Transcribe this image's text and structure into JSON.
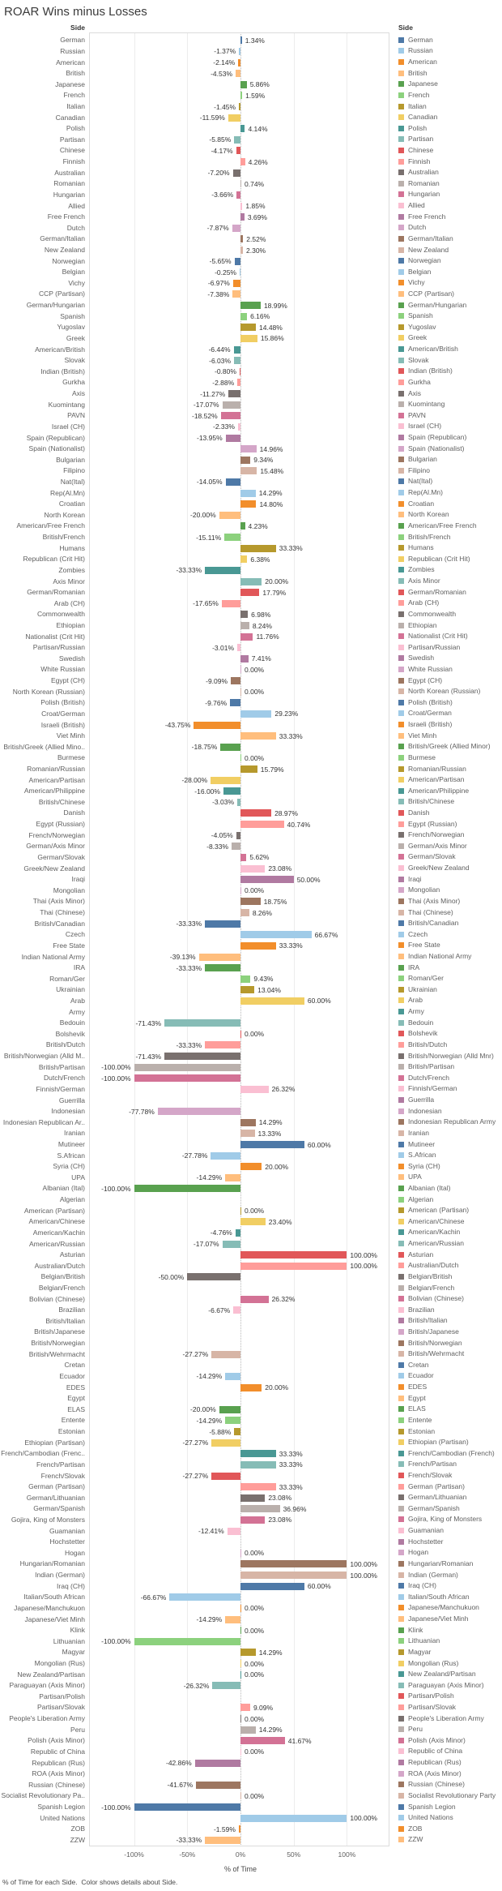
{
  "title": "ROAR Wins minus Losses",
  "column_header": "Side",
  "legend_title": "Side",
  "caption": "% of Time for each Side.  Color shows details about Side.",
  "palette": [
    "#4E79A7",
    "#A0CBE8",
    "#F28E2B",
    "#FFBE7D",
    "#59A14F",
    "#8CD17D",
    "#B6992D",
    "#F1CE63",
    "#499894",
    "#86BCB6",
    "#E15759",
    "#FF9D9A",
    "#79706E",
    "#BAB0AC",
    "#D37295",
    "#FABFD2",
    "#B07AA1",
    "#D4A6C8",
    "#9D7660",
    "#D7B5A6"
  ],
  "chart_data": {
    "type": "bar",
    "orientation": "horizontal",
    "title": "ROAR Wins minus Losses",
    "xlabel": "% of Time",
    "ylabel": "Side",
    "xlim": [
      -142,
      142
    ],
    "grid": true,
    "legend_position": "right",
    "axis": {
      "ticks": [
        "-100%",
        "-50%",
        "0%",
        "50%",
        "100%"
      ],
      "tick_values": [
        -100,
        -50,
        0,
        50,
        100
      ]
    },
    "rows": [
      {
        "side": "German",
        "value": 1.34,
        "label": "1.34%"
      },
      {
        "side": "Russian",
        "value": -1.37,
        "label": "-1.37%"
      },
      {
        "side": "American",
        "value": -2.14,
        "label": "-2.14%"
      },
      {
        "side": "British",
        "value": -4.53,
        "label": "-4.53%"
      },
      {
        "side": "Japanese",
        "value": 5.86,
        "label": "5.86%"
      },
      {
        "side": "French",
        "value": 1.59,
        "label": "1.59%"
      },
      {
        "side": "Italian",
        "value": -1.45,
        "label": "-1.45%"
      },
      {
        "side": "Canadian",
        "value": -11.59,
        "label": "-11.59%"
      },
      {
        "side": "Polish",
        "value": 4.14,
        "label": "4.14%"
      },
      {
        "side": "Partisan",
        "value": -5.85,
        "label": "-5.85%"
      },
      {
        "side": "Chinese",
        "value": -4.17,
        "label": "-4.17%"
      },
      {
        "side": "Finnish",
        "value": 4.26,
        "label": "4.26%"
      },
      {
        "side": "Australian",
        "value": -7.2,
        "label": "-7.20%"
      },
      {
        "side": "Romanian",
        "value": 0.74,
        "label": "0.74%"
      },
      {
        "side": "Hungarian",
        "value": -3.66,
        "label": "-3.66%"
      },
      {
        "side": "Allied",
        "value": 1.85,
        "label": "1.85%"
      },
      {
        "side": "Free French",
        "value": 3.69,
        "label": "3.69%"
      },
      {
        "side": "Dutch",
        "value": -7.87,
        "label": "-7.87%"
      },
      {
        "side": "German/Italian",
        "value": 2.52,
        "label": "2.52%"
      },
      {
        "side": "New Zealand",
        "value": 2.3,
        "label": "2.30%"
      },
      {
        "side": "Norwegian",
        "value": -5.65,
        "label": "-5.65%"
      },
      {
        "side": "Belgian",
        "value": -0.25,
        "label": "-0.25%"
      },
      {
        "side": "Vichy",
        "value": -6.97,
        "label": "-6.97%"
      },
      {
        "side": "CCP (Partisan)",
        "value": -7.38,
        "label": "-7.38%"
      },
      {
        "side": "German/Hungarian",
        "value": 18.99,
        "label": "18.99%"
      },
      {
        "side": "Spanish",
        "value": 6.16,
        "label": "6.16%"
      },
      {
        "side": "Yugoslav",
        "value": 14.48,
        "label": "14.48%"
      },
      {
        "side": "Greek",
        "value": 15.86,
        "label": "15.86%"
      },
      {
        "side": "American/British",
        "value": -6.44,
        "label": "-6.44%"
      },
      {
        "side": "Slovak",
        "value": -6.03,
        "label": "-6.03%"
      },
      {
        "side": "Indian (British)",
        "value": -0.8,
        "label": "-0.80%"
      },
      {
        "side": "Gurkha",
        "value": -2.88,
        "label": "-2.88%"
      },
      {
        "side": "Axis",
        "value": -11.27,
        "label": "-11.27%"
      },
      {
        "side": "Kuomintang",
        "value": -17.07,
        "label": "-17.07%"
      },
      {
        "side": "PAVN",
        "value": -18.52,
        "label": "-18.52%"
      },
      {
        "side": "Israel (CH)",
        "value": -2.33,
        "label": "-2.33%"
      },
      {
        "side": "Spain (Republican)",
        "value": -13.95,
        "label": "-13.95%"
      },
      {
        "side": "Spain (Nationalist)",
        "value": 14.96,
        "label": "14.96%"
      },
      {
        "side": "Bulgarian",
        "value": 9.34,
        "label": "9.34%"
      },
      {
        "side": "Filipino",
        "value": 15.48,
        "label": "15.48%"
      },
      {
        "side": "Nat(Ital)",
        "value": -14.05,
        "label": "-14.05%"
      },
      {
        "side": "Rep(Al.Mn)",
        "value": 14.29,
        "label": "14.29%"
      },
      {
        "side": "Croatian",
        "value": 14.8,
        "label": "14.80%"
      },
      {
        "side": "North Korean",
        "value": -20.0,
        "label": "-20.00%"
      },
      {
        "side": "American/Free French",
        "value": 4.23,
        "label": "4.23%"
      },
      {
        "side": "British/French",
        "value": -15.11,
        "label": "-15.11%"
      },
      {
        "side": "Humans",
        "value": 33.33,
        "label": "33.33%"
      },
      {
        "side": "Republican (Crit Hit)",
        "value": 6.38,
        "label": "6.38%"
      },
      {
        "side": "Zombies",
        "value": -33.33,
        "label": "-33.33%"
      },
      {
        "side": "Axis Minor",
        "value": 20.0,
        "label": "20.00%"
      },
      {
        "side": "German/Romanian",
        "value": 17.79,
        "label": "17.79%"
      },
      {
        "side": "Arab (CH)",
        "value": -17.65,
        "label": "-17.65%"
      },
      {
        "side": "Commonwealth",
        "value": 6.98,
        "label": "6.98%"
      },
      {
        "side": "Ethiopian",
        "value": 8.24,
        "label": "8.24%"
      },
      {
        "side": "Nationalist (Crit Hit)",
        "value": 11.76,
        "label": "11.76%"
      },
      {
        "side": "Partisan/Russian",
        "value": -3.01,
        "label": "-3.01%"
      },
      {
        "side": "Swedish",
        "value": 7.41,
        "label": "7.41%"
      },
      {
        "side": "White Russian",
        "value": 0.0,
        "label": "0.00%"
      },
      {
        "side": "Egypt (CH)",
        "value": -9.09,
        "label": "-9.09%"
      },
      {
        "side": "North Korean (Russian)",
        "value": 0.0,
        "label": "0.00%"
      },
      {
        "side": "Polish (British)",
        "value": -9.76,
        "label": "-9.76%"
      },
      {
        "side": "Croat/German",
        "value": 29.23,
        "label": "29.23%"
      },
      {
        "side": "Israeli (British)",
        "value": -43.75,
        "label": "-43.75%"
      },
      {
        "side": "Viet Minh",
        "value": 33.33,
        "label": "33.33%"
      },
      {
        "side": "British/Greek (Allied Minor)",
        "display": "British/Greek (Allied Mino..",
        "value": -18.75,
        "label": "-18.75%"
      },
      {
        "side": "Burmese",
        "value": 0.0,
        "label": "0.00%"
      },
      {
        "side": "Romanian/Russian",
        "value": 15.79,
        "label": "15.79%"
      },
      {
        "side": "American/Partisan",
        "value": -28.0,
        "label": "-28.00%"
      },
      {
        "side": "American/Philippine",
        "value": -16.0,
        "label": "-16.00%"
      },
      {
        "side": "British/Chinese",
        "value": -3.03,
        "label": "-3.03%"
      },
      {
        "side": "Danish",
        "value": 28.97,
        "label": "28.97%"
      },
      {
        "side": "Egypt (Russian)",
        "value": 40.74,
        "label": "40.74%"
      },
      {
        "side": "French/Norwegian",
        "value": -4.05,
        "label": "-4.05%"
      },
      {
        "side": "German/Axis Minor",
        "value": -8.33,
        "label": "-8.33%"
      },
      {
        "side": "German/Slovak",
        "value": 5.62,
        "label": "5.62%"
      },
      {
        "side": "Greek/New Zealand",
        "value": 23.08,
        "label": "23.08%"
      },
      {
        "side": "Iraqi",
        "value": 50.0,
        "label": "50.00%"
      },
      {
        "side": "Mongolian",
        "value": 0.0,
        "label": "0.00%"
      },
      {
        "side": "Thai (Axis Minor)",
        "value": 18.75,
        "label": "18.75%"
      },
      {
        "side": "Thai (Chinese)",
        "value": 8.26,
        "label": "8.26%"
      },
      {
        "side": "British/Canadian",
        "value": -33.33,
        "label": "-33.33%"
      },
      {
        "side": "Czech",
        "value": 66.67,
        "label": "66.67%"
      },
      {
        "side": "Free State",
        "value": 33.33,
        "label": "33.33%"
      },
      {
        "side": "Indian National Army",
        "value": -39.13,
        "label": "-39.13%"
      },
      {
        "side": "IRA",
        "value": -33.33,
        "label": "-33.33%"
      },
      {
        "side": "Roman/Ger",
        "value": 9.43,
        "label": "9.43%"
      },
      {
        "side": "Ukrainian",
        "value": 13.04,
        "label": "13.04%"
      },
      {
        "side": "Arab",
        "value": 60.0,
        "label": "60.00%"
      },
      {
        "side": "Army",
        "value": null,
        "label": ""
      },
      {
        "side": "Bedouin",
        "value": -71.43,
        "label": "-71.43%"
      },
      {
        "side": "Bolshevik",
        "value": 0.0,
        "label": "0.00%"
      },
      {
        "side": "British/Dutch",
        "value": -33.33,
        "label": "-33.33%"
      },
      {
        "side": "British/Norwegian (Alld Mnr)",
        "display": "British/Norwegian (Alld M..",
        "value": -71.43,
        "label": "-71.43%"
      },
      {
        "side": "British/Partisan",
        "value": -100.0,
        "label": "-100.00%"
      },
      {
        "side": "Dutch/French",
        "value": -100.0,
        "label": "-100.00%"
      },
      {
        "side": "Finnish/German",
        "value": 26.32,
        "label": "26.32%"
      },
      {
        "side": "Guerrilla",
        "value": null,
        "label": ""
      },
      {
        "side": "Indonesian",
        "value": -77.78,
        "label": "-77.78%"
      },
      {
        "side": "Indonesian Republican Army",
        "display": "Indonesian Republican Ar..",
        "value": 14.29,
        "label": "14.29%"
      },
      {
        "side": "Iranian",
        "value": 13.33,
        "label": "13.33%"
      },
      {
        "side": "Mutineer",
        "value": 60.0,
        "label": "60.00%"
      },
      {
        "side": "S.African",
        "value": -27.78,
        "label": "-27.78%"
      },
      {
        "side": "Syria (CH)",
        "value": 20.0,
        "label": "20.00%"
      },
      {
        "side": "UPA",
        "value": -14.29,
        "label": "-14.29%"
      },
      {
        "side": "Albanian (Ital)",
        "value": -100.0,
        "label": "-100.00%"
      },
      {
        "side": "Algerian",
        "value": null,
        "label": ""
      },
      {
        "side": "American (Partisan)",
        "value": 0.0,
        "label": "0.00%"
      },
      {
        "side": "American/Chinese",
        "value": 23.4,
        "label": "23.40%"
      },
      {
        "side": "American/Kachin",
        "value": -4.76,
        "label": "-4.76%"
      },
      {
        "side": "American/Russian",
        "value": -17.07,
        "label": "-17.07%"
      },
      {
        "side": "Asturian",
        "value": 100.0,
        "label": "100.00%"
      },
      {
        "side": "Australian/Dutch",
        "value": 100.0,
        "label": "100.00%"
      },
      {
        "side": "Belgian/British",
        "value": -50.0,
        "label": "-50.00%"
      },
      {
        "side": "Belgian/French",
        "value": null,
        "label": ""
      },
      {
        "side": "Bolivian (Chinese)",
        "value": 26.32,
        "label": "26.32%"
      },
      {
        "side": "Brazilian",
        "value": -6.67,
        "label": "-6.67%"
      },
      {
        "side": "British/Italian",
        "value": null,
        "label": ""
      },
      {
        "side": "British/Japanese",
        "value": null,
        "label": ""
      },
      {
        "side": "British/Norwegian",
        "value": null,
        "label": ""
      },
      {
        "side": "British/Wehrmacht",
        "value": -27.27,
        "label": "-27.27%"
      },
      {
        "side": "Cretan",
        "value": null,
        "label": ""
      },
      {
        "side": "Ecuador",
        "value": -14.29,
        "label": "-14.29%"
      },
      {
        "side": "EDES",
        "value": 20.0,
        "label": "20.00%"
      },
      {
        "side": "Egypt",
        "value": null,
        "label": ""
      },
      {
        "side": "ELAS",
        "value": -20.0,
        "label": "-20.00%"
      },
      {
        "side": "Entente",
        "value": -14.29,
        "label": "-14.29%"
      },
      {
        "side": "Estonian",
        "value": -5.88,
        "label": "-5.88%"
      },
      {
        "side": "Ethiopian (Partisan)",
        "value": -27.27,
        "label": "-27.27%"
      },
      {
        "side": "French/Cambodian (French)",
        "display": "French/Cambodian (Frenc..",
        "value": 33.33,
        "label": "33.33%"
      },
      {
        "side": "French/Partisan",
        "value": 33.33,
        "label": "33.33%"
      },
      {
        "side": "French/Slovak",
        "value": -27.27,
        "label": "-27.27%"
      },
      {
        "side": "German (Partisan)",
        "value": 33.33,
        "label": "33.33%"
      },
      {
        "side": "German/Lithuanian",
        "value": 23.08,
        "label": "23.08%"
      },
      {
        "side": "German/Spanish",
        "value": 36.96,
        "label": "36.96%"
      },
      {
        "side": "Gojira, King of Monsters",
        "value": 23.08,
        "label": "23.08%"
      },
      {
        "side": "Guamanian",
        "value": -12.41,
        "label": "-12.41%"
      },
      {
        "side": "Hochstetter",
        "value": null,
        "label": ""
      },
      {
        "side": "Hogan",
        "value": 0.0,
        "label": "0.00%"
      },
      {
        "side": "Hungarian/Romanian",
        "value": 100.0,
        "label": "100.00%"
      },
      {
        "side": "Indian (German)",
        "value": 100.0,
        "label": "100.00%"
      },
      {
        "side": "Iraq (CH)",
        "value": 60.0,
        "label": "60.00%"
      },
      {
        "side": "Italian/South African",
        "value": -66.67,
        "label": "-66.67%"
      },
      {
        "side": "Japanese/Manchukuon",
        "value": 0.0,
        "label": "0.00%"
      },
      {
        "side": "Japanese/Viet Minh",
        "value": -14.29,
        "label": "-14.29%"
      },
      {
        "side": "Klink",
        "value": 0.0,
        "label": "0.00%"
      },
      {
        "side": "Lithuanian",
        "value": -100.0,
        "label": "-100.00%"
      },
      {
        "side": "Magyar",
        "value": 14.29,
        "label": "14.29%"
      },
      {
        "side": "Mongolian (Rus)",
        "value": 0.0,
        "label": "0.00%"
      },
      {
        "side": "New Zealand/Partisan",
        "value": 0.0,
        "label": "0.00%"
      },
      {
        "side": "Paraguayan (Axis Minor)",
        "value": -26.32,
        "label": "-26.32%"
      },
      {
        "side": "Partisan/Polish",
        "value": null,
        "label": ""
      },
      {
        "side": "Partisan/Slovak",
        "value": 9.09,
        "label": "9.09%"
      },
      {
        "side": "People's Liberation Army",
        "value": 0.0,
        "label": "0.00%"
      },
      {
        "side": "Peru",
        "value": 14.29,
        "label": "14.29%"
      },
      {
        "side": "Polish (Axis Minor)",
        "value": 41.67,
        "label": "41.67%"
      },
      {
        "side": "Republic of China",
        "value": 0.0,
        "label": "0.00%"
      },
      {
        "side": "Republican (Rus)",
        "value": -42.86,
        "label": "-42.86%"
      },
      {
        "side": "ROA (Axis Minor)",
        "value": null,
        "label": ""
      },
      {
        "side": "Russian (Chinese)",
        "value": -41.67,
        "label": "-41.67%"
      },
      {
        "side": "Socialist Revolutionary Party",
        "display": "Socialist Revolutionary Pa..",
        "value": 0.0,
        "label": "0.00%"
      },
      {
        "side": "Spanish Legion",
        "value": -100.0,
        "label": "-100.00%"
      },
      {
        "side": "United Nations",
        "value": 100.0,
        "label": "100.00%"
      },
      {
        "side": "ZOB",
        "value": -1.59,
        "label": "-1.59%"
      },
      {
        "side": "ZZW",
        "value": -33.33,
        "label": "-33.33%"
      }
    ]
  }
}
